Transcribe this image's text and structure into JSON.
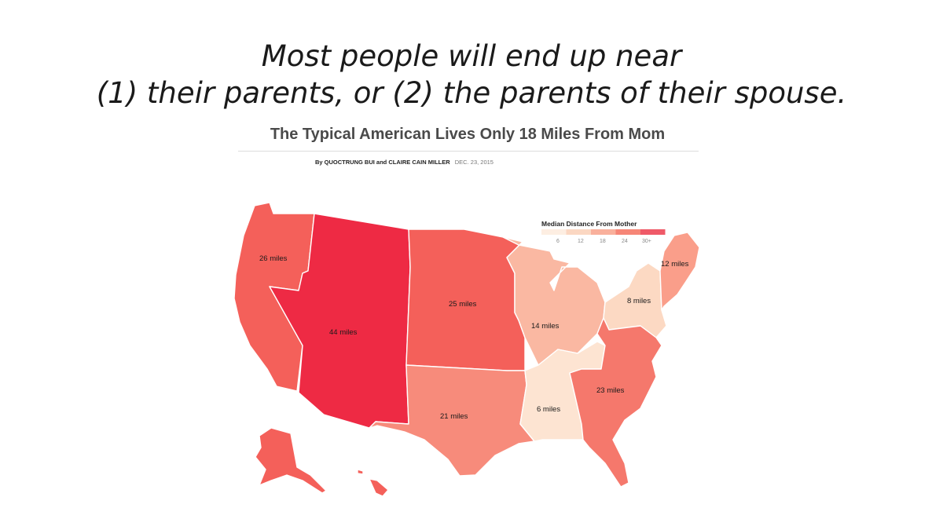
{
  "slide": {
    "title_line1": "Most people will end up near",
    "title_line2": "(1) their parents, or (2) the parents of their spouse."
  },
  "article": {
    "headline": "The Typical American Lives Only 18 Miles From Mom",
    "byline_authors": "By QUOCTRUNG BUI and CLAIRE CAIN MILLER",
    "byline_date": "DEC. 23, 2015"
  },
  "legend": {
    "title": "Median Distance From Mother",
    "ticks": [
      "6",
      "12",
      "18",
      "24",
      "30+"
    ],
    "colors": [
      "#fdeee2",
      "#fbd7c2",
      "#f9b09c",
      "#f68677",
      "#ef5a68"
    ]
  },
  "regions": [
    {
      "id": "west",
      "label": "44 miles",
      "value": 44,
      "color": "#ee2a44"
    },
    {
      "id": "pacific",
      "label": "26 miles",
      "value": 26,
      "color": "#f4605a"
    },
    {
      "id": "west-north-central",
      "label": "25 miles",
      "value": 25,
      "color": "#f4605a"
    },
    {
      "id": "south-atlantic",
      "label": "23 miles",
      "value": 23,
      "color": "#f5786c"
    },
    {
      "id": "west-south-central",
      "label": "21 miles",
      "value": 21,
      "color": "#f78b7b"
    },
    {
      "id": "east-north-central",
      "label": "14 miles",
      "value": 14,
      "color": "#fab8a2"
    },
    {
      "id": "new-england",
      "label": "12 miles",
      "value": 12,
      "color": "#fa9e8a"
    },
    {
      "id": "middle-atlantic",
      "label": "8 miles",
      "value": 8,
      "color": "#fcd9c3"
    },
    {
      "id": "east-south-central",
      "label": "6 miles",
      "value": 6,
      "color": "#fde4d2"
    }
  ],
  "colors": {
    "outline": "#ffffff"
  }
}
